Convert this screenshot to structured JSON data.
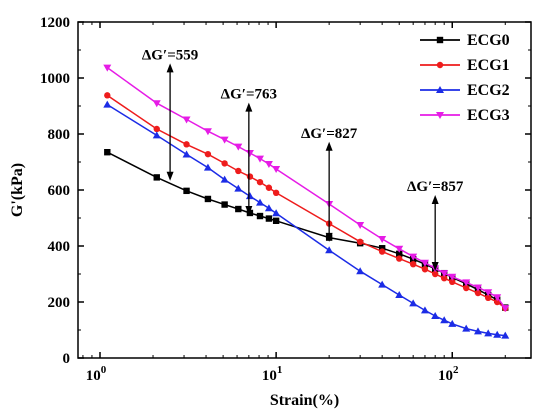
{
  "chart_data": {
    "type": "line",
    "xlabel": "Strain(%)",
    "ylabel": "G'(kPa)",
    "xscale": "log",
    "xlim": [
      0.75,
      280
    ],
    "ylim": [
      0,
      1200
    ],
    "yticks": [
      "0",
      "200",
      "400",
      "600",
      "800",
      "1000",
      "1200"
    ],
    "xticks": [
      {
        "value": 1,
        "base": "10",
        "exp": "0"
      },
      {
        "value": 10,
        "base": "10",
        "exp": "1"
      },
      {
        "value": 100,
        "base": "10",
        "exp": "2"
      }
    ],
    "legend_position": "top-right",
    "series": [
      {
        "name": "ECG0",
        "color": "#000000",
        "marker": "square",
        "x": [
          1.1,
          2.1,
          3.1,
          4.1,
          5.1,
          6.1,
          7.1,
          8.1,
          9.1,
          10,
          20,
          30,
          40,
          50,
          60,
          70,
          80,
          90,
          100,
          120,
          140,
          160,
          180,
          200
        ],
        "y": [
          735,
          645,
          597,
          568,
          548,
          532,
          518,
          507,
          498,
          490,
          430,
          410,
          392,
          372,
          353,
          335,
          318,
          303,
          288,
          265,
          244,
          225,
          208,
          180
        ]
      },
      {
        "name": "ECG1",
        "color": "#ee1c1c",
        "marker": "circle",
        "x": [
          1.1,
          2.1,
          3.1,
          4.1,
          5.1,
          6.1,
          7.1,
          8.1,
          9.1,
          10,
          20,
          30,
          40,
          50,
          60,
          70,
          80,
          90,
          100,
          120,
          140,
          160,
          180,
          200
        ],
        "y": [
          938,
          818,
          763,
          728,
          695,
          668,
          648,
          628,
          608,
          590,
          480,
          415,
          380,
          355,
          335,
          317,
          300,
          285,
          272,
          250,
          232,
          215,
          200,
          178
        ]
      },
      {
        "name": "ECG2",
        "color": "#1c2ce6",
        "marker": "triangle-up",
        "x": [
          1.1,
          2.1,
          3.1,
          4.1,
          5.1,
          6.1,
          7.1,
          8.1,
          9.1,
          10,
          20,
          30,
          40,
          50,
          60,
          70,
          80,
          90,
          100,
          120,
          140,
          160,
          180,
          200
        ],
        "y": [
          905,
          795,
          727,
          680,
          637,
          605,
          578,
          555,
          535,
          517,
          385,
          310,
          262,
          225,
          195,
          170,
          150,
          135,
          122,
          105,
          95,
          88,
          83,
          80
        ]
      },
      {
        "name": "ECG3",
        "color": "#e61ce6",
        "marker": "triangle-down",
        "x": [
          1.1,
          2.1,
          3.1,
          4.1,
          5.1,
          6.1,
          7.1,
          8.1,
          9.1,
          10,
          20,
          30,
          40,
          50,
          60,
          70,
          80,
          90,
          100,
          120,
          140,
          160,
          180,
          200
        ],
        "y": [
          1037,
          910,
          852,
          810,
          780,
          755,
          732,
          712,
          693,
          675,
          550,
          475,
          425,
          390,
          362,
          340,
          320,
          303,
          290,
          270,
          252,
          235,
          217,
          178
        ]
      }
    ],
    "annotations": [
      {
        "text": "ΔG′=559",
        "x": 2.5,
        "y_low": 640,
        "y_high": 1045
      },
      {
        "text": "ΔG′=763",
        "x": 7.0,
        "y_low": 518,
        "y_high": 905
      },
      {
        "text": "ΔG′=827",
        "x": 20,
        "y_low": 422,
        "y_high": 765
      },
      {
        "text": "ΔG′=857",
        "x": 80,
        "y_low": 318,
        "y_high": 575
      }
    ]
  }
}
